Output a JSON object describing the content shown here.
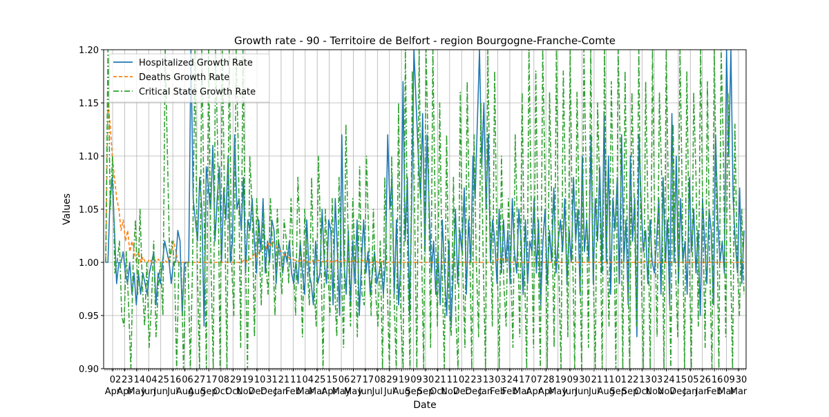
{
  "chart_data": {
    "type": "line",
    "title": "Growth rate - 90 - Territoire de Belfort - region Bourgogne-Franche-Comte",
    "xlabel": "Date",
    "ylabel": "Values",
    "ylim": [
      0.9,
      1.2
    ],
    "yticks": [
      "0.90",
      "0.95",
      "1.00",
      "1.05",
      "1.10",
      "1.15",
      "1.20"
    ],
    "x_day_labels": [
      "02",
      "23",
      "14",
      "04",
      "25",
      "16",
      "06",
      "27",
      "17",
      "08",
      "29",
      "19",
      "10",
      "31",
      "21",
      "11",
      "04",
      "25",
      "15",
      "06",
      "27",
      "17",
      "08",
      "29",
      "19",
      "09",
      "30",
      "21",
      "11",
      "02",
      "23",
      "13",
      "03",
      "24",
      "17",
      "07",
      "28",
      "19",
      "09",
      "30",
      "21",
      "11",
      "01",
      "22",
      "13",
      "03",
      "24",
      "15",
      "05",
      "26",
      "16",
      "09",
      "30"
    ],
    "x_month_labels": [
      "Apr",
      "Apr",
      "May",
      "Jun",
      "Jun",
      "Jul",
      "Aug",
      "Aug",
      "Sep",
      "Oct",
      "Oct",
      "Nov",
      "Dec",
      "Dec",
      "Jan",
      "Feb",
      "Mar",
      "Mar",
      "Apr",
      "May",
      "May",
      "Jun",
      "Jul",
      "Jul",
      "Aug",
      "Sep",
      "Sep",
      "Oct",
      "Nov",
      "Dec",
      "Dec",
      "Jan",
      "Feb",
      "Feb",
      "Mar",
      "Apr",
      "Apr",
      "May",
      "Jun",
      "Jun",
      "Jul",
      "Aug",
      "Sep",
      "Sep",
      "Oct",
      "Nov",
      "Nov",
      "Dec",
      "Jan",
      "Jan",
      "Feb",
      "Mar",
      "Mar"
    ],
    "grid": true,
    "legend_position": "top-left",
    "series": [
      {
        "name": "Hospitalized Growth Rate",
        "color": "#1f77b4",
        "style": "solid",
        "values": [
          1.0,
          1.0,
          1.06,
          1.08,
          1.03,
          0.98,
          1.0,
          1.0,
          1.01,
          0.99,
          0.98,
          1.0,
          0.97,
          0.99,
          0.96,
          0.99,
          0.97,
          0.99,
          0.98,
          0.97,
          0.99,
          1.0,
          1.01,
          0.96,
          0.99,
          0.98,
          1.0,
          1.02,
          1.01,
          1.0,
          0.98,
          1.0,
          1.0,
          1.03,
          1.02,
          0.95,
          1.0,
          1.0,
          1.0,
          1.2,
          1.06,
          1.04,
          1.02,
          1.08,
          1.05,
          0.94,
          1.09,
          1.07,
          1.05,
          1.11,
          1.02,
          1.06,
          1.09,
          1.0,
          1.07,
          1.04,
          1.1,
          1.0,
          1.02,
          1.12,
          1.05,
          1.06,
          1.03,
          1.08,
          0.99,
          1.04,
          1.03,
          1.06,
          1.02,
          0.99,
          1.04,
          1.01,
          1.06,
          0.99,
          1.02,
          1.0,
          1.04,
          1.03,
          0.98,
          1.02,
          1.01,
          0.99,
          1.01,
          1.0,
          1.02,
          0.99,
          0.98,
          1.0,
          0.98,
          1.02,
          0.99,
          0.97,
          1.04,
          0.99,
          0.98,
          0.96,
          1.02,
          0.98,
          0.99,
          1.05,
          1.0,
          0.98,
          1.04,
          1.03,
          0.96,
          1.06,
          1.01,
          0.95,
          1.12,
          1.0,
          0.97,
          1.03,
          0.96,
          1.02,
          0.98,
          1.04,
          0.95,
          1.0,
          1.04,
          0.99,
          1.01,
          0.97,
          0.99,
          1.01,
          0.98,
          0.99,
          1.0,
          0.97,
          1.0,
          1.12,
          1.05,
          1.08,
          0.97,
          1.04,
          0.96,
          1.0,
          1.17,
          1.02,
          1.08,
          0.95,
          1.06,
          1.2,
          1.15,
          1.1,
          1.06,
          1.14,
          1.01,
          1.12,
          1.05,
          0.99,
          1.02,
          0.97,
          1.01,
          0.96,
          1.04,
          0.99,
          0.95,
          1.02,
          0.94,
          0.99,
          1.05,
          0.98,
          1.03,
          1.01,
          1.07,
          0.97,
          1.04,
          1.0,
          1.1,
          1.06,
          1.13,
          1.2,
          1.09,
          1.15,
          1.05,
          1.12,
          1.0,
          1.04,
          1.02,
          0.98,
          1.05,
          0.99,
          1.04,
          1.0,
          1.03,
          0.98,
          1.06,
          1.01,
          0.99,
          1.05,
          1.02,
          0.97,
          1.04,
          0.98,
          1.02,
          1.01,
          1.06,
          0.99,
          1.04,
          0.96,
          1.02,
          1.05,
          0.98,
          1.03,
          1.0,
          1.07,
          0.99,
          1.02,
          1.04,
          1.01,
          1.06,
          0.98,
          1.03,
          1.0,
          1.08,
          1.02,
          1.05,
          0.97,
          1.1,
          1.01,
          1.04,
          1.0,
          1.12,
          0.98,
          1.06,
          1.02,
          1.09,
          0.99,
          1.14,
          1.0,
          1.1,
          0.97,
          1.06,
          1.03,
          1.08,
          0.98,
          1.12,
          1.0,
          1.04,
          0.96,
          1.1,
          1.02,
          1.06,
          0.93,
          1.12,
          1.05,
          1.01,
          1.03,
          0.98,
          1.04,
          1.0,
          0.99,
          1.02,
          1.06,
          0.97,
          1.08,
          1.0,
          1.04,
          0.96,
          1.14,
          1.0,
          1.1,
          0.98,
          1.06,
          1.0,
          1.02,
          0.97,
          1.08,
          1.01,
          1.05,
          0.99,
          1.03,
          0.95,
          1.06,
          1.02,
          0.98,
          1.05,
          1.03,
          0.96,
          1.12,
          1.04,
          1.0,
          1.02,
          0.99,
          1.2,
          1.1,
          1.2,
          1.06,
          1.02,
          0.99,
          1.07,
          0.98,
          1.03
        ]
      },
      {
        "name": "Deaths Growth Rate",
        "color": "#ff7f0e",
        "style": "dashed",
        "values": [
          1.0,
          1.15,
          1.13,
          1.1,
          1.08,
          1.06,
          1.05,
          1.03,
          1.04,
          1.02,
          1.03,
          1.01,
          1.02,
          1.01,
          1.0,
          1.01,
          1.0,
          1.005,
          1.0,
          1.0,
          1.003,
          1.0,
          1.005,
          1.0,
          1.003,
          1.0,
          1.0,
          1.002,
          1.0,
          1.004,
          1.01,
          1.02,
          1.01,
          1.0,
          1.0,
          1.0,
          1.0,
          1.0,
          1.0,
          1.0,
          1.0,
          1.0,
          1.0,
          1.0,
          1.0,
          1.0,
          1.0,
          1.0,
          1.0,
          1.0,
          1.0,
          1.0,
          1.0,
          1.0,
          1.0,
          1.0,
          1.0,
          1.0,
          1.0,
          1.0,
          1.0,
          1.0,
          1.0,
          1.002,
          1.0,
          1.004,
          1.003,
          1.006,
          1.008,
          1.005,
          1.01,
          1.012,
          1.015,
          1.013,
          1.018,
          1.015,
          1.02,
          1.017,
          1.014,
          1.012,
          1.01,
          1.008,
          1.006,
          1.005,
          1.004,
          1.003,
          1.002,
          1.002,
          1.001,
          1.002,
          1.001,
          1.002,
          1.001,
          1.0,
          1.002,
          1.0,
          1.001,
          1.002,
          1.0,
          1.001,
          1.0,
          1.002,
          1.0,
          1.001,
          1.0,
          1.002,
          1.0,
          1.001,
          1.0,
          1.002,
          1.0,
          1.001,
          1.0,
          1.002,
          1.0,
          1.001,
          1.0,
          1.002,
          1.0,
          1.001,
          1.0,
          1.0,
          1.0,
          1.001,
          1.0,
          1.0,
          1.001,
          1.0,
          1.0,
          1.0,
          1.0,
          1.0,
          1.0,
          1.0,
          1.0,
          1.0,
          1.0,
          1.0,
          1.0,
          1.0,
          1.0,
          1.0,
          1.0,
          1.0,
          1.0,
          1.0,
          1.0,
          1.0,
          1.0,
          1.0,
          1.0,
          1.0,
          1.0,
          1.0,
          1.0,
          1.0,
          1.0,
          1.0,
          1.0,
          1.0,
          1.0,
          1.0,
          1.0,
          1.0,
          1.0,
          1.0,
          1.0,
          1.0,
          1.0,
          1.0,
          1.0,
          1.0,
          1.0,
          1.0,
          1.0,
          1.0,
          1.0,
          1.0,
          1.002,
          1.003,
          1.004,
          1.002,
          1.003,
          1.002,
          1.001,
          1.0,
          1.0,
          1.0,
          1.0,
          1.0,
          1.0,
          1.0,
          1.0,
          1.0,
          1.0,
          1.0,
          1.0,
          1.0,
          1.0,
          1.0,
          1.0,
          1.0,
          1.0,
          1.0,
          1.0,
          1.0,
          1.0,
          1.0,
          1.0,
          1.0,
          1.0,
          1.0,
          1.0,
          1.0,
          1.0,
          1.0,
          1.0,
          1.0,
          1.0,
          1.0,
          1.0,
          1.0,
          1.0,
          1.0,
          1.0,
          1.0,
          1.0,
          1.0,
          1.0,
          1.0,
          1.0,
          1.0,
          1.0,
          1.0,
          1.0,
          1.0,
          1.0,
          1.0,
          1.0,
          1.0,
          1.0,
          1.0,
          1.0,
          1.0,
          1.0,
          1.0,
          1.001,
          1.0,
          1.001,
          1.0,
          1.0,
          1.0,
          1.0,
          1.0,
          1.0,
          1.0,
          1.0,
          1.0,
          1.0,
          1.0,
          1.0,
          1.0,
          1.0,
          1.0,
          1.0,
          1.0,
          1.0,
          1.0,
          1.0,
          1.0,
          1.0,
          1.0,
          1.0,
          1.0,
          1.0,
          1.0,
          1.0,
          1.0,
          1.0,
          1.0,
          1.0,
          1.0,
          1.0,
          1.0,
          1.0,
          1.0,
          1.0,
          1.0,
          1.0,
          1.0,
          1.0,
          1.0
        ]
      },
      {
        "name": "Critical State Growth Rate",
        "color": "#2ca02c",
        "style": "dashdot",
        "values": [
          1.0,
          1.2,
          1.05,
          1.1,
          0.99,
          1.0,
          1.02,
          0.95,
          0.94,
          1.01,
          0.96,
          0.9,
          1.0,
          1.04,
          0.97,
          1.05,
          0.98,
          0.94,
          1.0,
          0.92,
          0.96,
          1.02,
          0.93,
          0.98,
          1.0,
          0.95,
          1.2,
          1.1,
          1.0,
          1.02,
          1.0,
          0.9,
          1.0,
          1.0,
          0.9,
          1.0,
          1.0,
          0.9,
          1.0,
          1.2,
          1.0,
          0.9,
          1.2,
          1.05,
          0.9,
          1.2,
          1.0,
          0.9,
          1.2,
          1.1,
          0.9,
          1.2,
          1.05,
          0.9,
          1.2,
          1.0,
          0.95,
          1.2,
          1.1,
          0.92,
          1.2,
          1.02,
          0.9,
          1.1,
          1.05,
          0.93,
          1.06,
          1.02,
          0.96,
          1.05,
          1.0,
          0.97,
          1.06,
          1.01,
          0.95,
          1.05,
          1.0,
          0.97,
          1.04,
          1.02,
          0.98,
          1.06,
          1.0,
          0.95,
          1.08,
          1.02,
          0.93,
          1.05,
          1.0,
          0.96,
          1.08,
          0.98,
          0.94,
          1.1,
          1.02,
          0.9,
          1.05,
          1.0,
          0.95,
          1.06,
          0.98,
          0.93,
          1.08,
          1.0,
          0.92,
          1.13,
          1.02,
          0.94,
          1.06,
          1.0,
          0.93,
          1.09,
          0.97,
          0.96,
          1.1,
          1.02,
          0.95,
          1.05,
          0.97,
          0.94,
          1.02,
          0.9,
          1.08,
          0.98,
          0.9,
          1.1,
          0.97,
          0.9,
          1.15,
          0.95,
          0.9,
          1.2,
          1.0,
          0.9,
          1.18,
          1.05,
          0.9,
          1.2,
          1.02,
          0.9,
          1.2,
          1.1,
          0.92,
          1.2,
          1.05,
          0.94,
          1.15,
          1.0,
          0.9,
          1.12,
          0.96,
          0.93,
          1.08,
          0.95,
          0.9,
          1.16,
          1.0,
          0.92,
          1.17,
          1.03,
          0.9,
          1.12,
          1.0,
          0.93,
          1.15,
          1.0,
          0.9,
          1.2,
          1.05,
          0.94,
          1.18,
          1.02,
          0.9,
          1.1,
          0.98,
          0.94,
          1.06,
          1.0,
          0.92,
          1.12,
          1.03,
          0.93,
          1.16,
          1.0,
          0.9,
          1.2,
          1.05,
          0.92,
          1.18,
          1.02,
          0.9,
          1.2,
          1.08,
          0.9,
          1.16,
          1.05,
          0.92,
          1.2,
          1.0,
          0.9,
          1.18,
          1.06,
          0.93,
          1.2,
          1.02,
          0.9,
          1.16,
          1.04,
          0.9,
          1.2,
          1.08,
          0.92,
          1.2,
          1.0,
          0.9,
          1.15,
          1.06,
          0.9,
          1.2,
          1.02,
          0.94,
          1.17,
          1.05,
          0.9,
          1.2,
          1.1,
          0.9,
          1.18,
          1.02,
          0.9,
          1.16,
          1.06,
          0.94,
          1.2,
          1.0,
          0.9,
          1.17,
          1.05,
          0.9,
          1.2,
          1.03,
          0.93,
          1.16,
          1.08,
          0.9,
          1.2,
          1.05,
          0.9,
          1.13,
          1.0,
          0.93,
          1.2,
          1.06,
          0.9,
          1.18,
          1.02,
          0.9,
          1.16,
          1.08,
          0.94,
          1.2,
          1.04,
          0.92,
          1.17,
          1.0,
          0.9,
          1.2,
          1.05,
          0.9,
          1.2,
          1.1,
          0.93,
          1.16,
          1.02,
          0.9,
          1.13,
          1.0,
          0.95,
          1.05,
          0.97
        ]
      }
    ]
  }
}
